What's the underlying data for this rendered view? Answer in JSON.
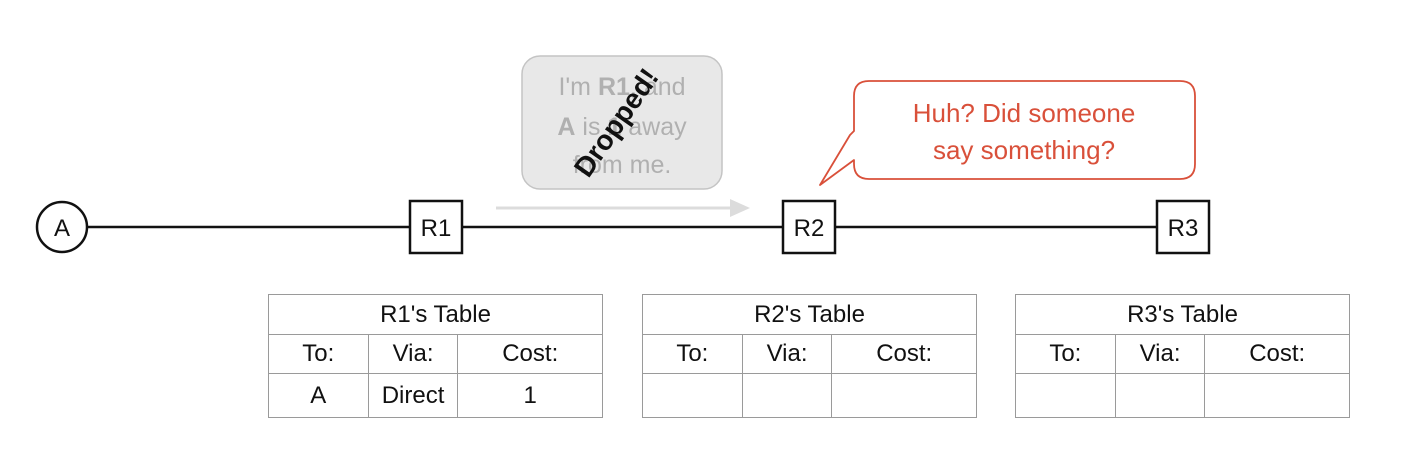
{
  "nodes": {
    "a": "A",
    "r1": "R1",
    "r2": "R2",
    "r3": "R3"
  },
  "message_bubble": {
    "line1_pre": "I'm ",
    "line1_bold": "R1",
    "line1_post": ", and",
    "line2_bold_a": "A",
    "line2_mid": " is ",
    "line2_bold_b": "1",
    "line2_post": " away",
    "line3": "from me.",
    "stamp": "Dropped!"
  },
  "reply_bubble": {
    "line1": "Huh? Did someone",
    "line2": "say something?"
  },
  "tables": [
    {
      "title": "R1's Table",
      "headers": [
        "To:",
        "Via:",
        "Cost:"
      ],
      "row": [
        "A",
        "Direct",
        "1"
      ]
    },
    {
      "title": "R2's Table",
      "headers": [
        "To:",
        "Via:",
        "Cost:"
      ],
      "row": [
        "",
        "",
        ""
      ]
    },
    {
      "title": "R3's Table",
      "headers": [
        "To:",
        "Via:",
        "Cost:"
      ],
      "row": [
        "",
        "",
        ""
      ]
    }
  ],
  "colors": {
    "reply": "#d9503a",
    "faded_text": "#b0b0b0",
    "bubble_fill": "#e8e8e8",
    "link": "#111111"
  }
}
